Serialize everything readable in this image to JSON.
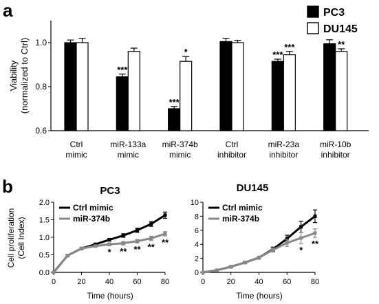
{
  "chart_data": [
    {
      "type": "bar",
      "panel_label": "a",
      "ylabel_line1": "Viability",
      "ylabel_line2": "(normalized to Ctrl)",
      "ylim": [
        0.6,
        1.1
      ],
      "yticks": [
        "0.6",
        "0.8",
        "1.0"
      ],
      "ytick_values": [
        0.6,
        0.8,
        1.0
      ],
      "categories": [
        {
          "line1": "Ctrl",
          "line2": "mimic"
        },
        {
          "line1": "miR-133a",
          "line2": "mimic"
        },
        {
          "line1": "miR-374b",
          "line2": "mimic"
        },
        {
          "line1": "Ctrl",
          "line2": "inhibitor"
        },
        {
          "line1": "miR-23a",
          "line2": "inhibitor"
        },
        {
          "line1": "miR-10b",
          "line2": "inhibitor"
        }
      ],
      "legend_position": "top-right",
      "series": [
        {
          "name": "PC3",
          "color": "#000000",
          "values": [
            1.0,
            0.845,
            0.7,
            1.005,
            0.915,
            0.995
          ],
          "errors": [
            0.012,
            0.012,
            0.01,
            0.015,
            0.01,
            0.018
          ],
          "stars": [
            "",
            "***",
            "***",
            "",
            "***",
            ""
          ]
        },
        {
          "name": "DU145",
          "color": "#ffffff",
          "values": [
            1.0,
            0.96,
            0.915,
            1.0,
            0.945,
            0.96
          ],
          "errors": [
            0.02,
            0.015,
            0.022,
            0.01,
            0.015,
            0.012
          ],
          "stars": [
            "",
            "",
            "*",
            "",
            "***",
            "**"
          ]
        }
      ]
    },
    {
      "type": "line",
      "panel_label": "b",
      "title": "PC3",
      "xlabel": "Time (hours)",
      "ylabel_line1": "Cell proliferation",
      "ylabel_line2": "(Cell Index)",
      "xlim": [
        0,
        80
      ],
      "ylim": [
        0,
        2.0
      ],
      "xticks": [
        "0",
        "20",
        "40",
        "60",
        "80"
      ],
      "xtick_values": [
        0,
        20,
        40,
        60,
        80
      ],
      "yticks": [
        "0.0",
        "0.5",
        "1.0",
        "1.5",
        "2.0"
      ],
      "ytick_values": [
        0,
        0.5,
        1.0,
        1.5,
        2.0
      ],
      "legend_position": "top-left",
      "series": [
        {
          "name": "Ctrl mimic",
          "color": "#000000",
          "x": [
            0,
            10,
            20,
            30,
            40,
            50,
            60,
            70,
            80
          ],
          "y": [
            0.0,
            0.48,
            0.68,
            0.8,
            0.93,
            1.05,
            1.2,
            1.38,
            1.63
          ],
          "errors": [
            0,
            0.02,
            0.03,
            0.03,
            0.04,
            0.05,
            0.06,
            0.07,
            0.09
          ]
        },
        {
          "name": "miR-374b",
          "color": "#888888",
          "x": [
            0,
            10,
            20,
            30,
            40,
            50,
            60,
            70,
            80
          ],
          "y": [
            0.0,
            0.48,
            0.68,
            0.75,
            0.8,
            0.83,
            0.89,
            0.97,
            1.1
          ],
          "errors": [
            0,
            0.02,
            0.03,
            0.03,
            0.04,
            0.05,
            0.05,
            0.06,
            0.06
          ]
        }
      ],
      "annotations": [
        {
          "x": 40,
          "text": "*"
        },
        {
          "x": 50,
          "text": "**"
        },
        {
          "x": 60,
          "text": "**"
        },
        {
          "x": 70,
          "text": "**"
        },
        {
          "x": 80,
          "text": "**"
        }
      ]
    },
    {
      "type": "line",
      "title": "DU145",
      "xlabel": "Time (hours)",
      "xlim": [
        0,
        80
      ],
      "ylim": [
        0,
        10
      ],
      "xticks": [
        "0",
        "20",
        "40",
        "60",
        "80"
      ],
      "xtick_values": [
        0,
        20,
        40,
        60,
        80
      ],
      "yticks": [
        "0",
        "2",
        "4",
        "6",
        "8",
        "10"
      ],
      "ytick_values": [
        0,
        2,
        4,
        6,
        8,
        10
      ],
      "legend_position": "top-left",
      "series": [
        {
          "name": "Ctrl mimic",
          "color": "#000000",
          "x": [
            0,
            10,
            20,
            30,
            40,
            50,
            60,
            70,
            80
          ],
          "y": [
            0.0,
            0.3,
            0.8,
            1.4,
            2.1,
            3.3,
            4.8,
            6.5,
            8.0
          ],
          "errors": [
            0,
            0.05,
            0.1,
            0.15,
            0.2,
            0.3,
            0.5,
            0.8,
            0.9
          ]
        },
        {
          "name": "miR-374b",
          "color": "#888888",
          "x": [
            0,
            10,
            20,
            30,
            40,
            50,
            60,
            70,
            80
          ],
          "y": [
            0.0,
            0.3,
            0.8,
            1.4,
            2.1,
            3.2,
            4.2,
            4.9,
            5.6
          ],
          "errors": [
            0,
            0.05,
            0.1,
            0.15,
            0.2,
            0.3,
            0.5,
            0.8,
            0.6
          ]
        }
      ],
      "annotations": [
        {
          "x": 70,
          "text": "*"
        },
        {
          "x": 80,
          "text": "**"
        }
      ]
    }
  ]
}
